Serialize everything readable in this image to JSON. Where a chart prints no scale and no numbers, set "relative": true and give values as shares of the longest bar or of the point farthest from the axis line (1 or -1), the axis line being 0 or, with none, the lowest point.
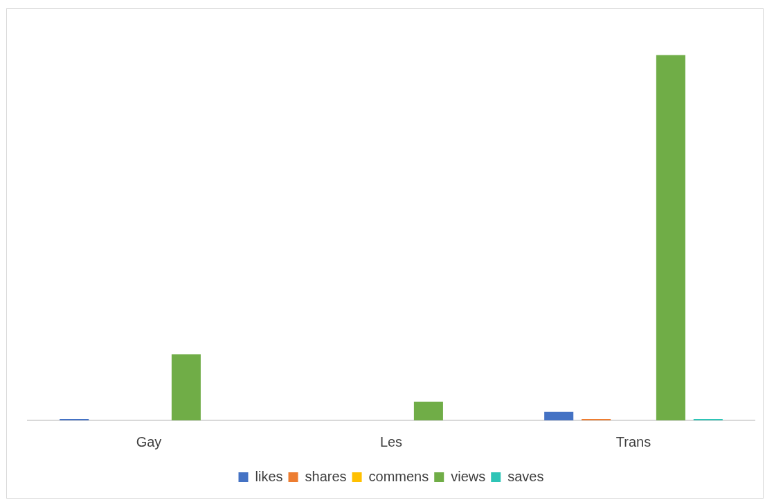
{
  "chart_data": {
    "type": "bar",
    "relative": true,
    "categories": [
      "Gay",
      "Les",
      "Trans"
    ],
    "series": [
      {
        "name": "likes",
        "color": "#4472c4",
        "values": [
          0.004,
          0,
          0.023
        ]
      },
      {
        "name": "shares",
        "color": "#ed7d31",
        "values": [
          0,
          0,
          0.004
        ]
      },
      {
        "name": "commens",
        "color": "#ffc000",
        "values": [
          0,
          0,
          0
        ]
      },
      {
        "name": "views",
        "color": "#70ad47",
        "values": [
          0.181,
          0.051,
          1
        ]
      },
      {
        "name": "saves",
        "color": "#2ec4b6",
        "values": [
          0,
          0,
          0.004
        ]
      }
    ],
    "grid": false,
    "legend": "bottom"
  }
}
